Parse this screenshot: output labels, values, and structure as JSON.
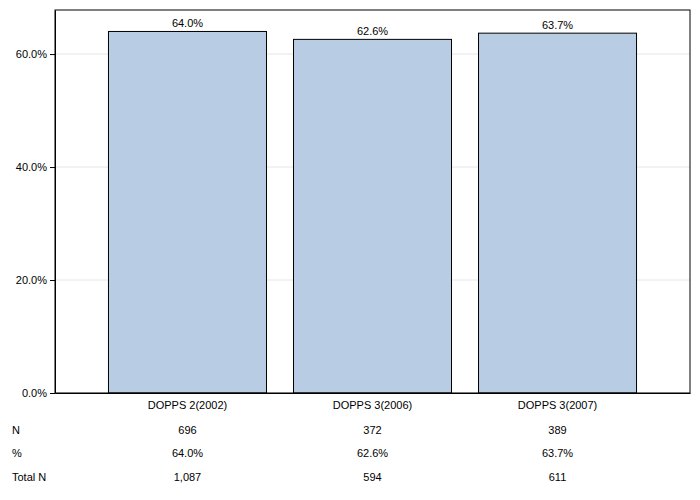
{
  "chart_data": {
    "type": "bar",
    "categories": [
      "DOPPS 2(2002)",
      "DOPPS 3(2006)",
      "DOPPS 3(2007)"
    ],
    "values": [
      64.0,
      62.6,
      63.7
    ],
    "value_labels": [
      "64.0%",
      "62.6%",
      "63.7%"
    ],
    "data_labels": true,
    "color": "#b8cce4",
    "ylim": [
      0,
      67.8
    ],
    "yticks": [
      {
        "value": 0,
        "label": "0.0%"
      },
      {
        "value": 20,
        "label": "20.0%"
      },
      {
        "value": 40,
        "label": "40.0%"
      },
      {
        "value": 60,
        "label": "60.0%"
      }
    ],
    "grid": true
  },
  "table": {
    "row_labels": [
      "N",
      "%",
      "Total N"
    ],
    "rows": [
      [
        "696",
        "372",
        "389"
      ],
      [
        "64.0%",
        "62.6%",
        "63.7%"
      ],
      [
        "1,087",
        "594",
        "611"
      ]
    ]
  }
}
